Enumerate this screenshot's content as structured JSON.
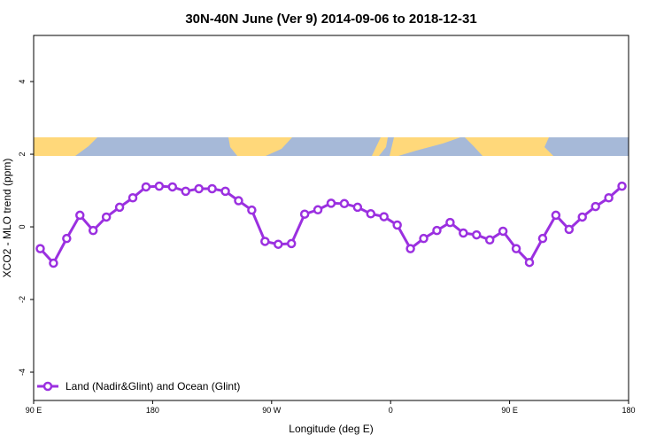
{
  "chart_data": {
    "type": "line",
    "title": "30N-40N June (Ver 9)   2014-09-06 to 2018-12-31",
    "x_label": "Longitude (deg E)",
    "y_label": "XCO2 - MLO trend (ppm)",
    "x": [
      95,
      105,
      115,
      125,
      135,
      145,
      155,
      165,
      175,
      185,
      195,
      205,
      215,
      225,
      235,
      245,
      255,
      265,
      275,
      285,
      295,
      305,
      315,
      325,
      335,
      345,
      355,
      365,
      375,
      385,
      395,
      405,
      415,
      425,
      435,
      445,
      455,
      465,
      475,
      485,
      495,
      505,
      515,
      525,
      535
    ],
    "series": [
      {
        "name": "Land (Nadir&Glint) and Ocean (Glint)",
        "color": "#9b30e0",
        "values": [
          -0.6,
          -1.0,
          -0.32,
          0.32,
          -0.1,
          0.27,
          0.54,
          0.8,
          1.1,
          1.12,
          1.1,
          0.98,
          1.05,
          1.05,
          0.98,
          0.72,
          0.46,
          -0.4,
          -0.48,
          -0.46,
          0.35,
          0.47,
          0.65,
          0.64,
          0.54,
          0.36,
          0.28,
          0.05,
          -0.6,
          -0.32,
          -0.1,
          0.12,
          -0.17,
          -0.22,
          -0.36,
          -0.12,
          -0.6,
          -0.98,
          -0.32,
          0.32,
          -0.07,
          0.27,
          0.56,
          0.8,
          1.12
        ]
      }
    ],
    "xlim": [
      90,
      540
    ],
    "xticks": [
      {
        "value": 90,
        "label": "90 E"
      },
      {
        "value": 180,
        "label": "180"
      },
      {
        "value": 270,
        "label": "90 W"
      },
      {
        "value": 360,
        "label": "0"
      },
      {
        "value": 450,
        "label": "90 E"
      },
      {
        "value": 540,
        "label": "180"
      }
    ],
    "ylim": [
      -4.78,
      5.27
    ],
    "yticks": [
      -4,
      -2,
      0,
      2,
      4
    ],
    "legend": "bottom-left"
  }
}
